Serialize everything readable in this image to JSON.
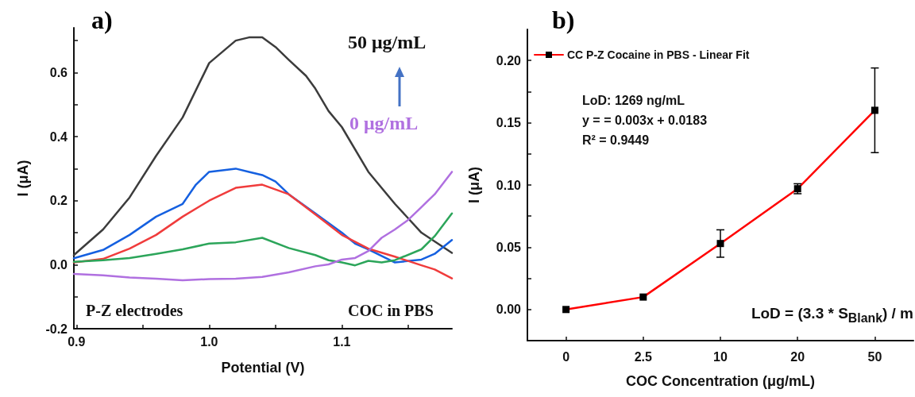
{
  "chart_data": [
    {
      "type": "line",
      "title": "a)",
      "xlabel": "Potential (V)",
      "ylabel": "I (μA)",
      "marker": "none",
      "grid": false,
      "legend": false,
      "xlim": [
        0.898,
        1.183
      ],
      "ylim": [
        -0.2,
        0.74
      ],
      "xticks": [
        0.9,
        {
          "value": 0.95,
          "label": null
        },
        {
          "value": 1.0,
          "label": "1.0"
        },
        {
          "value": 1.05,
          "label": null
        },
        1.1,
        {
          "value": 1.15,
          "label": null
        }
      ],
      "yticks": [
        -0.2,
        {
          "value": -0.1,
          "label": null
        },
        {
          "value": 0,
          "label": "0.0"
        },
        {
          "value": 0.1,
          "label": null
        },
        0.2,
        {
          "value": 0.3,
          "label": null
        },
        0.4,
        {
          "value": 0.5,
          "label": null
        },
        0.6,
        {
          "value": 0.7,
          "label": null
        }
      ],
      "annotations": [
        "50 μg/mL",
        "0 μg/mL",
        "P-Z electrodes",
        "COC in PBS"
      ],
      "series": [
        {
          "color": "#3c3c3c",
          "x": [
            0.898,
            0.92,
            0.94,
            0.96,
            0.98,
            1.0,
            1.02,
            1.03,
            1.04,
            1.05,
            1.06,
            1.073,
            1.08,
            1.09,
            1.1,
            1.12,
            1.14,
            1.16,
            1.183
          ],
          "values": [
            0.03,
            0.11,
            0.21,
            0.34,
            0.46,
            0.63,
            0.7,
            0.71,
            0.71,
            0.68,
            0.64,
            0.59,
            0.55,
            0.48,
            0.43,
            0.29,
            0.19,
            0.1,
            0.037
          ]
        },
        {
          "color": "#1560e0",
          "x": [
            0.898,
            0.92,
            0.94,
            0.96,
            0.98,
            0.99,
            1.0,
            1.02,
            1.03,
            1.04,
            1.05,
            1.06,
            1.08,
            1.1,
            1.11,
            1.12,
            1.14,
            1.16,
            1.17,
            1.183
          ],
          "values": [
            0.02,
            0.046,
            0.093,
            0.15,
            0.19,
            0.25,
            0.29,
            0.3,
            0.29,
            0.28,
            0.26,
            0.22,
            0.16,
            0.1,
            0.066,
            0.048,
            0.007,
            0.016,
            0.034,
            0.077
          ]
        },
        {
          "color": "#f03c3c",
          "x": [
            0.898,
            0.92,
            0.94,
            0.96,
            0.98,
            1.0,
            1.02,
            1.04,
            1.06,
            1.08,
            1.1,
            1.12,
            1.14,
            1.16,
            1.17,
            1.183
          ],
          "values": [
            0.007,
            0.018,
            0.05,
            0.093,
            0.15,
            0.2,
            0.24,
            0.25,
            0.22,
            0.157,
            0.093,
            0.05,
            0.025,
            -0.002,
            -0.015,
            -0.043
          ]
        },
        {
          "color": "#2ca55a",
          "x": [
            0.898,
            0.92,
            0.94,
            0.96,
            0.98,
            1.0,
            1.02,
            1.04,
            1.06,
            1.08,
            1.09,
            1.1,
            1.11,
            1.12,
            1.13,
            1.14,
            1.16,
            1.17,
            1.183
          ],
          "values": [
            0.009,
            0.014,
            0.021,
            0.034,
            0.048,
            0.066,
            0.07,
            0.084,
            0.052,
            0.03,
            0.014,
            0.007,
            -0.002,
            0.012,
            0.007,
            0.014,
            0.048,
            0.089,
            0.16
          ]
        },
        {
          "color": "#b070e0",
          "x": [
            0.898,
            0.92,
            0.94,
            0.96,
            0.98,
            1.0,
            1.02,
            1.04,
            1.06,
            1.08,
            1.09,
            1.1,
            1.11,
            1.12,
            1.13,
            1.14,
            1.15,
            1.16,
            1.17,
            1.183
          ],
          "values": [
            -0.029,
            -0.033,
            -0.04,
            -0.044,
            -0.049,
            -0.045,
            -0.044,
            -0.038,
            -0.024,
            -0.005,
            0.001,
            0.016,
            0.021,
            0.043,
            0.084,
            0.11,
            0.14,
            0.18,
            0.22,
            0.29
          ]
        }
      ]
    },
    {
      "type": "line",
      "title": "b)",
      "xlabel": "COC Concentration (μg/mL)",
      "ylabel": "I (μA)",
      "marker": "square",
      "grid": false,
      "legend": "top left",
      "categories": [
        "0",
        "2.5",
        "10",
        "20",
        "50"
      ],
      "ylim": [
        -0.025,
        0.225
      ],
      "yticks": [
        {
          "value": -0.025,
          "label": null
        },
        {
          "value": 0,
          "label": "0.00"
        },
        {
          "value": 0.025,
          "label": null
        },
        0.05,
        {
          "value": 0.075,
          "label": null
        },
        {
          "value": 0.1,
          "label": "0.10"
        },
        {
          "value": 0.125,
          "label": null
        },
        0.15,
        {
          "value": 0.175,
          "label": null
        },
        {
          "value": 0.2,
          "label": "0.20"
        }
      ],
      "annotations": [
        "LoD: 1269 ng/mL",
        "y = = 0.003x + 0.0183",
        "R² = 0.9449",
        "LoD = (3.3 * S$_{Blank}$) / m"
      ],
      "series": [
        {
          "name": "CC P-Z Cocaine in PBS - Linear Fit",
          "color": "#ff0000",
          "values": [
            0,
            0.01,
            0.053,
            0.097,
            0.16
          ],
          "errors": [
            null,
            null,
            0.011,
            0.004,
            0.034
          ]
        }
      ]
    }
  ]
}
